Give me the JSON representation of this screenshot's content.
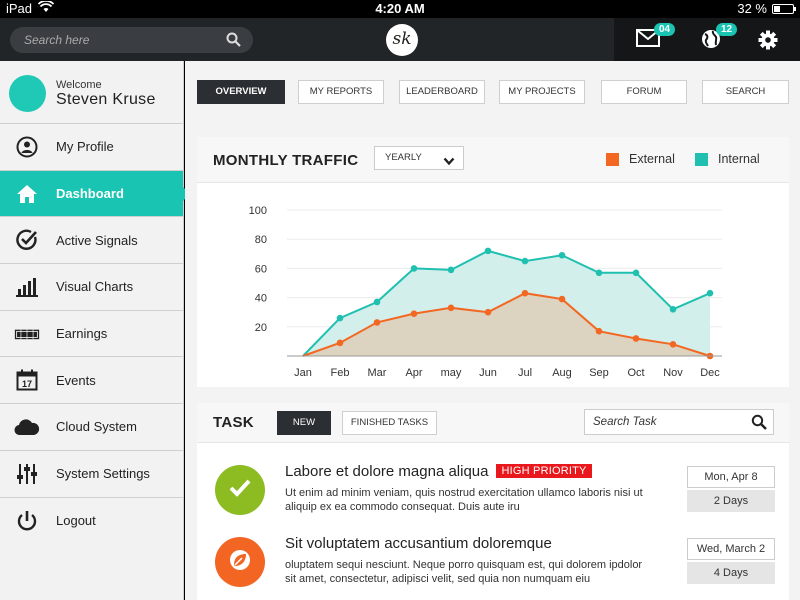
{
  "statusbar": {
    "device": "iPad",
    "time": "4:20 AM",
    "battery": "32 %",
    "battery_level": 0.32
  },
  "topbar": {
    "search_placeholder": "Search here",
    "logo": "sk",
    "mail_badge": "04",
    "globe_badge": "12"
  },
  "user": {
    "welcome": "Welcome",
    "name": "Steven Kruse"
  },
  "sidebar": {
    "items": [
      {
        "label": "My Profile",
        "icon": "user-icon"
      },
      {
        "label": "Dashboard",
        "icon": "home-icon",
        "active": true
      },
      {
        "label": "Active Signals",
        "icon": "check-circle-icon"
      },
      {
        "label": "Visual Charts",
        "icon": "bar-chart-icon"
      },
      {
        "label": "Earnings",
        "icon": "cash-icon"
      },
      {
        "label": "Events",
        "icon": "calendar-icon"
      },
      {
        "label": "Cloud System",
        "icon": "cloud-icon"
      },
      {
        "label": "System Settings",
        "icon": "sliders-icon"
      },
      {
        "label": "Logout",
        "icon": "power-icon"
      }
    ],
    "events_day": "17"
  },
  "tabs": [
    "OVERVIEW",
    "MY REPORTS",
    "LEADERBOARD",
    "MY PROJECTS",
    "FORUM",
    "SEARCH"
  ],
  "traffic": {
    "title": "MONTHLY TRAFFIC",
    "period": "YEARLY",
    "legend_external": "External",
    "legend_internal": "Internal"
  },
  "chart_data": {
    "type": "area",
    "title": "",
    "categories": [
      "Jan",
      "Feb",
      "Mar",
      "Apr",
      "may",
      "Jun",
      "Jul",
      "Aug",
      "Sep",
      "Oct",
      "Nov",
      "Dec"
    ],
    "yticks": [
      20,
      40,
      60,
      80,
      100
    ],
    "ylim": [
      0,
      100
    ],
    "grid": true,
    "legend_position": "top-right",
    "series": [
      {
        "name": "Internal",
        "color": "#1fc0b0",
        "fill": "#d3efec",
        "values": [
          0,
          26,
          37,
          60,
          59,
          72,
          65,
          69,
          57,
          57,
          32,
          43
        ]
      },
      {
        "name": "External",
        "color": "#f26822",
        "fill": "#dcd3c0",
        "values": [
          0,
          9,
          23,
          29,
          33,
          30,
          43,
          39,
          17,
          12,
          8,
          0
        ]
      }
    ]
  },
  "task": {
    "title": "TASK",
    "new_label": "NEW",
    "finished_label": "FINISHED TASKS",
    "search_placeholder": "Search Task",
    "items": [
      {
        "title": "Labore et dolore magna aliqua",
        "priority": "HIGH PRIORITY",
        "desc": "Ut enim ad minim veniam, quis nostrud exercitation ullamco laboris nisi ut aliquip ex ea commodo consequat. Duis aute iru",
        "date": "Mon, Apr 8",
        "days": "2 Days",
        "icon": "check-icon",
        "color": "#8cbc22"
      },
      {
        "title": "Sit voluptatem accusantium doloremque",
        "priority": "",
        "desc": "oluptatem sequi nesciunt. Neque porro quisquam est, qui dolorem ipdolor sit amet, consectetur, adipisci velit, sed quia non numquam eiu",
        "date": "Wed, March 2",
        "days": "4 Days",
        "icon": "leaf-icon",
        "color": "#f26522"
      }
    ]
  },
  "colors": {
    "accent": "#19c4b2",
    "dark": "#222528",
    "priority": "#e8181d"
  }
}
